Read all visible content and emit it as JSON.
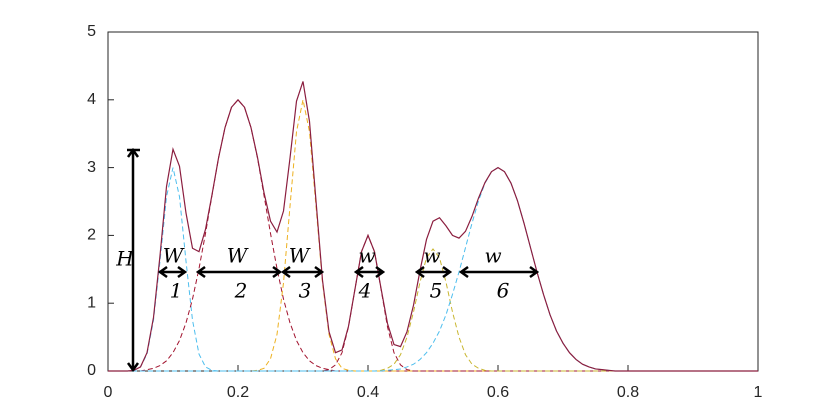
{
  "chart_data": {
    "type": "line",
    "x": [
      0,
      0.01,
      0.02,
      0.03,
      0.04,
      0.05,
      0.06,
      0.07,
      0.08,
      0.09,
      0.1,
      0.11,
      0.12,
      0.13,
      0.14,
      0.15,
      0.16,
      0.17,
      0.18,
      0.19,
      0.2,
      0.21,
      0.22,
      0.23,
      0.24,
      0.25,
      0.26,
      0.27,
      0.28,
      0.29,
      0.3,
      0.31,
      0.32,
      0.33,
      0.34,
      0.35,
      0.36,
      0.37,
      0.38,
      0.39,
      0.4,
      0.41,
      0.42,
      0.43,
      0.44,
      0.45,
      0.46,
      0.47,
      0.48,
      0.49,
      0.5,
      0.51,
      0.52,
      0.53,
      0.54,
      0.55,
      0.56,
      0.57,
      0.58,
      0.59,
      0.6,
      0.61,
      0.62,
      0.63,
      0.64,
      0.65,
      0.66,
      0.67,
      0.68,
      0.69,
      0.7,
      0.71,
      0.72,
      0.73,
      0.74,
      0.75,
      0.76,
      0.77,
      0.78,
      0.79,
      0.8,
      0.81,
      0.82,
      0.83,
      0.84,
      0.85,
      0.86,
      0.87,
      0.88,
      0.89,
      0.9,
      0.91,
      0.92,
      0.93,
      0.94,
      0.95,
      0.96,
      0.97,
      0.98,
      0.99,
      1
    ],
    "series": [
      {
        "color": "#4dbeee",
        "dashed": true,
        "values": [
          0,
          0,
          0,
          0,
          0.01,
          0.06,
          0.25,
          0.75,
          1.62,
          2.57,
          3,
          2.57,
          1.62,
          0.75,
          0.25,
          0.06,
          0.01,
          0,
          0,
          0,
          0,
          0,
          0,
          0,
          0,
          0,
          0,
          0,
          0,
          0,
          0,
          0,
          0,
          0,
          0,
          0,
          0,
          0,
          0,
          0,
          0,
          0,
          0,
          0,
          0,
          0,
          0,
          0,
          0,
          0,
          0,
          0,
          0,
          0,
          0,
          0,
          0,
          0,
          0,
          0,
          0,
          0,
          0,
          0,
          0,
          0,
          0,
          0,
          0,
          0,
          0,
          0,
          0,
          0,
          0,
          0,
          0,
          0,
          0,
          0,
          0,
          0,
          0,
          0,
          0,
          0,
          0,
          0,
          0,
          0,
          0,
          0,
          0,
          0,
          0,
          0,
          0,
          0,
          0,
          0,
          0
        ]
      },
      {
        "color": "#a2142f",
        "dashed": true,
        "values": [
          0,
          0,
          0,
          0,
          0,
          0,
          0.02,
          0.04,
          0.08,
          0.15,
          0.27,
          0.45,
          0.71,
          1.06,
          1.51,
          2.03,
          2.59,
          3.14,
          3.59,
          3.89,
          4,
          3.89,
          3.59,
          3.14,
          2.59,
          2.03,
          1.51,
          1.06,
          0.71,
          0.45,
          0.27,
          0.15,
          0.08,
          0.04,
          0.02,
          0,
          0,
          0,
          0,
          0,
          0,
          0,
          0,
          0,
          0,
          0,
          0,
          0,
          0,
          0,
          0,
          0,
          0,
          0,
          0,
          0,
          0,
          0,
          0,
          0,
          0,
          0,
          0,
          0,
          0,
          0,
          0,
          0,
          0,
          0,
          0,
          0,
          0,
          0,
          0,
          0,
          0,
          0,
          0,
          0,
          0,
          0,
          0,
          0,
          0,
          0,
          0,
          0,
          0,
          0,
          0,
          0,
          0,
          0,
          0,
          0,
          0,
          0,
          0,
          0,
          0
        ]
      },
      {
        "color": "#edb120",
        "dashed": true,
        "values": [
          0,
          0,
          0,
          0,
          0,
          0,
          0,
          0,
          0,
          0,
          0,
          0,
          0,
          0,
          0,
          0,
          0,
          0,
          0,
          0,
          0,
          0,
          0,
          0.01,
          0.04,
          0.18,
          0.54,
          1.3,
          2.43,
          3.53,
          4,
          3.53,
          2.43,
          1.3,
          0.54,
          0.18,
          0.04,
          0.01,
          0,
          0,
          0,
          0,
          0,
          0,
          0,
          0,
          0,
          0,
          0,
          0,
          0,
          0,
          0,
          0,
          0,
          0,
          0,
          0,
          0,
          0,
          0,
          0,
          0,
          0,
          0,
          0,
          0,
          0,
          0,
          0,
          0,
          0,
          0,
          0,
          0,
          0,
          0,
          0,
          0,
          0,
          0,
          0,
          0,
          0,
          0,
          0,
          0,
          0,
          0,
          0,
          0,
          0,
          0,
          0,
          0,
          0,
          0,
          0,
          0,
          0,
          0
        ]
      },
      {
        "color": "#a2142f",
        "dashed": true,
        "values": [
          0,
          0,
          0,
          0,
          0,
          0,
          0,
          0,
          0,
          0,
          0,
          0,
          0,
          0,
          0,
          0,
          0,
          0,
          0,
          0,
          0,
          0,
          0,
          0,
          0,
          0,
          0,
          0,
          0,
          0,
          0,
          0,
          0,
          0,
          0.02,
          0.09,
          0.27,
          0.65,
          1.21,
          1.76,
          2,
          1.76,
          1.21,
          0.65,
          0.27,
          0.09,
          0.02,
          0,
          0,
          0,
          0,
          0,
          0,
          0,
          0,
          0,
          0,
          0,
          0,
          0,
          0,
          0,
          0,
          0,
          0,
          0,
          0,
          0,
          0,
          0,
          0,
          0,
          0,
          0,
          0,
          0,
          0,
          0,
          0,
          0,
          0,
          0,
          0,
          0,
          0,
          0,
          0,
          0,
          0,
          0,
          0,
          0,
          0,
          0,
          0,
          0,
          0,
          0,
          0,
          0,
          0
        ]
      },
      {
        "color": "#c9b630",
        "dashed": true,
        "values": [
          0,
          0,
          0,
          0,
          0,
          0,
          0,
          0,
          0,
          0,
          0,
          0,
          0,
          0,
          0,
          0,
          0,
          0,
          0,
          0,
          0,
          0,
          0,
          0,
          0,
          0,
          0,
          0,
          0,
          0,
          0,
          0,
          0,
          0,
          0,
          0,
          0,
          0,
          0,
          0,
          0,
          0,
          0.01,
          0.04,
          0.1,
          0.24,
          0.5,
          0.87,
          1.31,
          1.67,
          1.8,
          1.67,
          1.31,
          0.87,
          0.5,
          0.24,
          0.1,
          0.04,
          0.01,
          0,
          0,
          0,
          0,
          0,
          0,
          0,
          0,
          0,
          0,
          0,
          0,
          0,
          0,
          0,
          0,
          0,
          0,
          0,
          0,
          0,
          0,
          0,
          0,
          0,
          0,
          0,
          0,
          0,
          0,
          0,
          0,
          0,
          0,
          0,
          0,
          0,
          0,
          0,
          0,
          0,
          0
        ]
      },
      {
        "color": "#4dbeee",
        "dashed": true,
        "values": [
          0,
          0,
          0,
          0,
          0,
          0,
          0,
          0,
          0,
          0,
          0,
          0,
          0,
          0,
          0,
          0,
          0,
          0,
          0,
          0,
          0,
          0,
          0,
          0,
          0,
          0,
          0,
          0,
          0,
          0,
          0,
          0,
          0,
          0,
          0,
          0,
          0,
          0,
          0,
          0,
          0,
          0,
          0,
          0.01,
          0.02,
          0.03,
          0.06,
          0.1,
          0.17,
          0.27,
          0.41,
          0.59,
          0.83,
          1.13,
          1.46,
          1.82,
          2.18,
          2.51,
          2.77,
          2.94,
          3,
          2.94,
          2.77,
          2.51,
          2.18,
          1.82,
          1.46,
          1.13,
          0.83,
          0.59,
          0.41,
          0.27,
          0.17,
          0.1,
          0.06,
          0.03,
          0.02,
          0.01,
          0,
          0,
          0,
          0,
          0,
          0,
          0,
          0,
          0,
          0,
          0,
          0,
          0,
          0,
          0,
          0,
          0,
          0,
          0,
          0,
          0,
          0,
          0
        ]
      },
      {
        "color": "#8b1e3f",
        "dashed": false,
        "values": [
          0,
          0,
          0,
          0,
          0.01,
          0.06,
          0.27,
          0.79,
          1.7,
          2.72,
          3.27,
          3.02,
          2.33,
          1.81,
          1.76,
          2.09,
          2.6,
          3.14,
          3.59,
          3.89,
          4,
          3.89,
          3.59,
          3.15,
          2.63,
          2.21,
          2.05,
          2.36,
          3.14,
          3.98,
          4.27,
          3.68,
          2.51,
          1.34,
          0.58,
          0.27,
          0.31,
          0.66,
          1.21,
          1.76,
          2,
          1.76,
          1.22,
          0.7,
          0.39,
          0.36,
          0.58,
          0.97,
          1.48,
          1.94,
          2.21,
          2.26,
          2.14,
          2.0,
          1.96,
          2.06,
          2.28,
          2.55,
          2.78,
          2.94,
          3,
          2.94,
          2.77,
          2.51,
          2.18,
          1.82,
          1.46,
          1.13,
          0.83,
          0.59,
          0.41,
          0.27,
          0.17,
          0.1,
          0.06,
          0.03,
          0.02,
          0.01,
          0,
          0,
          0,
          0,
          0,
          0,
          0,
          0,
          0,
          0,
          0,
          0,
          0,
          0,
          0,
          0,
          0,
          0,
          0,
          0,
          0,
          0,
          0
        ]
      }
    ],
    "xlim": [
      0,
      1
    ],
    "xticks": [
      0,
      0.2,
      0.4,
      0.6,
      0.8,
      1
    ],
    "ylim": [
      0,
      5
    ],
    "yticks": [
      0,
      1,
      2,
      3,
      4,
      5
    ],
    "grid": false,
    "annotations": {
      "height_label": "H",
      "width_labels": [
        "W",
        "W",
        "W",
        "w",
        "w",
        "w"
      ],
      "peak_numbers": [
        "1",
        "2",
        "3",
        "4",
        "5",
        "6"
      ]
    }
  }
}
